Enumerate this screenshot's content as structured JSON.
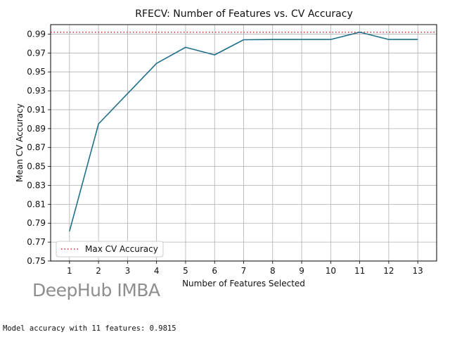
{
  "chart_data": {
    "type": "line",
    "title": "RFECV: Number of Features vs. CV Accuracy",
    "xlabel": "Number of Features Selected",
    "ylabel": "Mean CV Accuracy",
    "x": [
      1,
      2,
      3,
      4,
      5,
      6,
      7,
      8,
      9,
      10,
      11,
      12,
      13
    ],
    "series": [
      {
        "values": [
          0.7815,
          0.895,
          0.927,
          0.959,
          0.976,
          0.968,
          0.984,
          0.9843,
          0.9843,
          0.9843,
          0.992,
          0.9843,
          0.9843
        ],
        "color": "#1f6f8b"
      }
    ],
    "reference_line": {
      "name": "Max CV Accuracy",
      "value": 0.992,
      "color": "#d62728",
      "style": "dotted"
    },
    "xlim": [
      0.35,
      13.65
    ],
    "ylim": [
      0.75,
      1.0
    ],
    "xticks": [
      "1",
      "2",
      "3",
      "4",
      "5",
      "6",
      "7",
      "8",
      "9",
      "10",
      "11",
      "12",
      "13"
    ],
    "yticks": [
      "0.75",
      "0.77",
      "0.79",
      "0.81",
      "0.83",
      "0.85",
      "0.87",
      "0.89",
      "0.91",
      "0.93",
      "0.95",
      "0.97",
      "0.99"
    ],
    "grid": true,
    "legend_position": "lower-left"
  },
  "watermark": "DeepHub IMBA",
  "console_output": "Model accuracy with 11 features: 0.9815"
}
